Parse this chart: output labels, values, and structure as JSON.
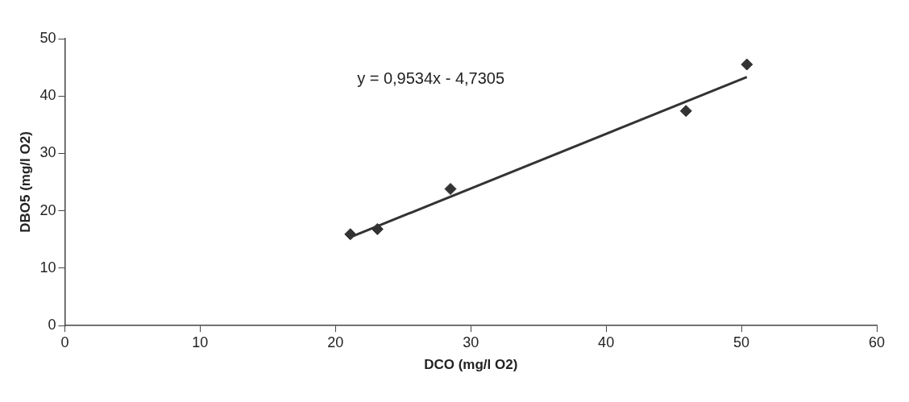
{
  "chart_data": {
    "type": "scatter",
    "xlabel": "DCO (mg/l O2)",
    "ylabel": "DBO5 (mg/l O2)",
    "annotations": [
      "y = 0,9534x - 4,7305"
    ],
    "series": [
      {
        "color": "#333333",
        "marker": "diamond",
        "x": [
          21.1,
          23.1,
          28.5,
          45.9,
          50.4
        ],
        "values": [
          15.9,
          16.8,
          23.8,
          37.4,
          45.5
        ]
      },
      {
        "type": "line",
        "color": "#333333",
        "marker": "none",
        "x": [
          21.1,
          50.4
        ],
        "values": [
          15.4,
          43.3
        ]
      }
    ],
    "xlim": [
      0,
      60
    ],
    "ylim": [
      0,
      50
    ],
    "xticks": [
      0,
      10,
      20,
      30,
      40,
      50,
      60
    ],
    "yticks": [
      0,
      10,
      20,
      30,
      40,
      50
    ],
    "grid": false,
    "legend": false
  }
}
